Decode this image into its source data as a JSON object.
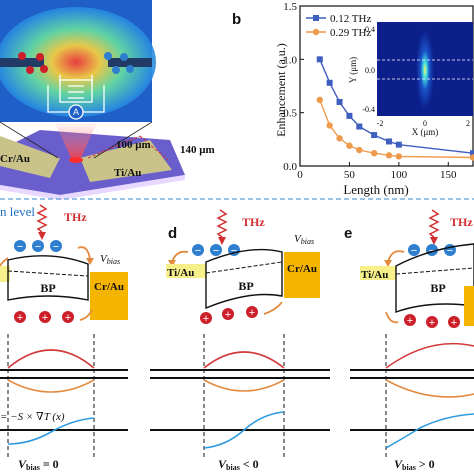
{
  "panel_labels": {
    "b": "b",
    "d": "d",
    "e": "e"
  },
  "panel_a": {
    "dim_100": "100 μm",
    "dim_140": "140 μm",
    "left_metal": "Cr/Au",
    "right_metal": "Ti/Au",
    "meter_symbol": "A"
  },
  "chart_data": {
    "type": "line",
    "title": "",
    "xlabel": "Length (nm)",
    "ylabel": "Enhancement (a.u.)",
    "xlim": [
      0,
      175
    ],
    "ylim": [
      0,
      1.5
    ],
    "xticks": [
      "0",
      "50",
      "100",
      "150"
    ],
    "yticks": [
      "0.0",
      "0.5",
      "1.0",
      "1.5"
    ],
    "legend_position": "top-left",
    "series": [
      {
        "name": "0.12 THz",
        "color": "#3f5fbf",
        "marker": "square",
        "x": [
          20,
          30,
          40,
          50,
          60,
          75,
          90,
          100,
          175
        ],
        "y": [
          1.0,
          0.78,
          0.6,
          0.47,
          0.37,
          0.29,
          0.23,
          0.2,
          0.12
        ]
      },
      {
        "name": "0.29 THz",
        "color": "#ee9a4d",
        "marker": "circle",
        "x": [
          20,
          30,
          40,
          50,
          60,
          75,
          90,
          100,
          175
        ],
        "y": [
          0.62,
          0.38,
          0.26,
          0.19,
          0.15,
          0.12,
          0.1,
          0.09,
          0.08
        ]
      }
    ],
    "inset": {
      "xlabel": "X (μm)",
      "ylabel": "Y (μm)",
      "xticks": [
        "-2",
        "0",
        "2"
      ],
      "yticks": [
        "0.4",
        "0.0",
        "-0.4"
      ]
    }
  },
  "band_panels": {
    "c": {
      "header": "n level",
      "thz_label": "THz",
      "vbias_label": "V",
      "vbias_sub": "bias",
      "bp_label": "BP",
      "right_metal": "Cr/Au",
      "formula": "= −S × ∇T (x)",
      "bottom_label": "V",
      "bottom_sub": "bias",
      "bottom_value": "= 0"
    },
    "d": {
      "thz_label": "THz",
      "vbias_label": "V",
      "vbias_sub": "bias",
      "bp_label": "BP",
      "left_metal": "Ti/Au",
      "right_metal": "Cr/Au",
      "bottom_label": "V",
      "bottom_sub": "bias",
      "bottom_value": "< 0"
    },
    "e": {
      "thz_label": "THz",
      "bp_label": "BP",
      "left_metal": "Ti/Au",
      "bottom_label": "V",
      "bottom_sub": "bias",
      "bottom_value": "> 0"
    }
  },
  "charges": {
    "electron": "−",
    "hole": "+"
  },
  "colors": {
    "electron": "#2f7fd0",
    "hole": "#cc1f2a",
    "thz": "#d23030",
    "metal_cr": "#f4b400",
    "metal_ti": "#f6ef8a",
    "curve_red": "#d23a3a",
    "curve_orange": "#e3893e",
    "curve_blue": "#2f9be0",
    "divider": "#5aa0d8"
  }
}
